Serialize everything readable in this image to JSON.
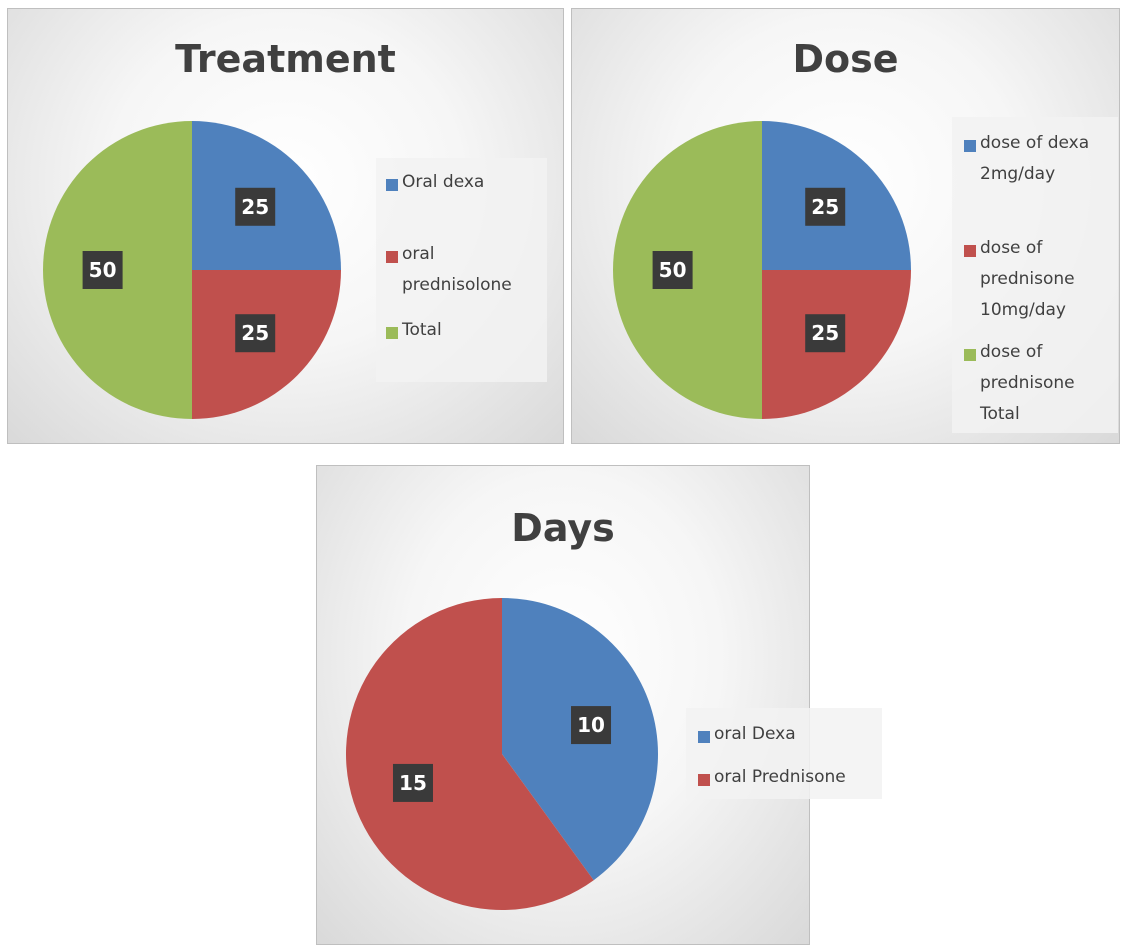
{
  "chart_data": [
    {
      "type": "pie",
      "title": "Treatment",
      "categories": [
        "Oral dexa",
        "oral prednisolone",
        "Total"
      ],
      "values": [
        25,
        25,
        50
      ],
      "colors": [
        "#4f81bd",
        "#c0504d",
        "#9bbb59"
      ],
      "data_labels": [
        "25",
        "25",
        "50"
      ],
      "legend_position": "right"
    },
    {
      "type": "pie",
      "title": "Dose",
      "categories": [
        "dose of dexa 2mg/day",
        "dose of prednisone 10mg/day",
        "dose of prednisone Total"
      ],
      "values": [
        25,
        25,
        50
      ],
      "colors": [
        "#4f81bd",
        "#c0504d",
        "#9bbb59"
      ],
      "data_labels": [
        "25",
        "25",
        "50"
      ],
      "legend_position": "right"
    },
    {
      "type": "pie",
      "title": "Days",
      "categories": [
        "oral Dexa",
        "oral Prednisone"
      ],
      "values": [
        10,
        15
      ],
      "colors": [
        "#4f81bd",
        "#c0504d"
      ],
      "data_labels": [
        "10",
        "15"
      ],
      "legend_position": "right"
    }
  ]
}
